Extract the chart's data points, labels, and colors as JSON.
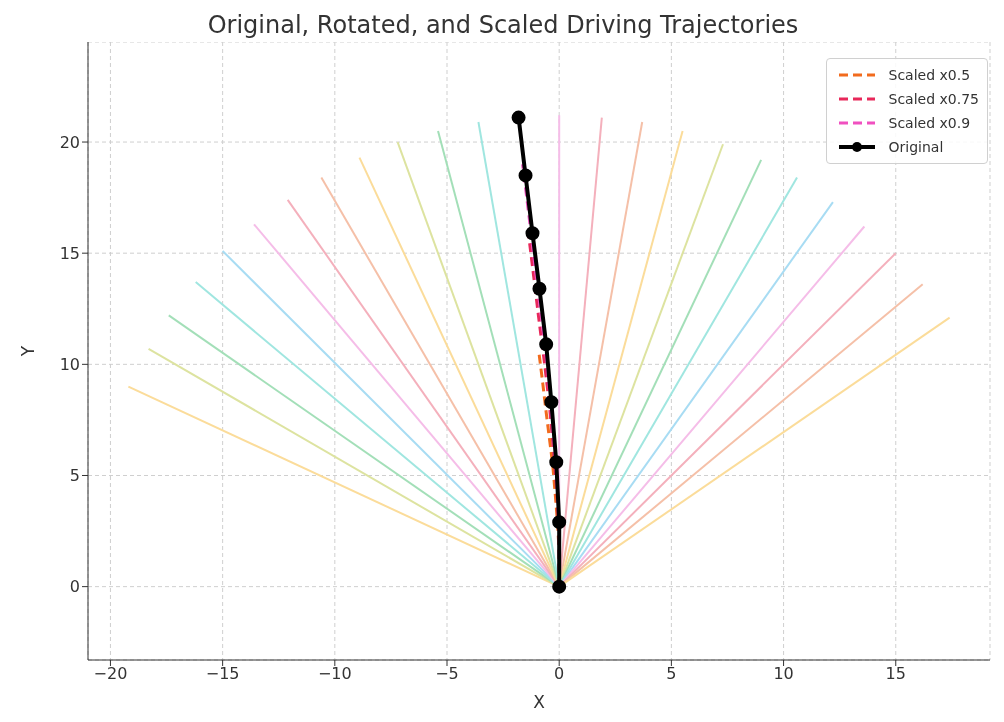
{
  "chart_data": {
    "type": "line",
    "title": "Original, Rotated, and Scaled Driving Trajectories",
    "xlabel": "X",
    "ylabel": "Y",
    "xlim": [
      -21,
      19.2
    ],
    "ylim": [
      -3.3,
      24.5
    ],
    "xticks": [
      -20,
      -15,
      -10,
      -5,
      0,
      5,
      10,
      15
    ],
    "yticks": [
      0,
      5,
      10,
      15,
      20
    ],
    "grid": true,
    "legend": "top right",
    "series": [
      {
        "color": "#fbdc9a",
        "x": [
          0,
          -19.2
        ],
        "values": [
          0,
          9.0
        ]
      },
      {
        "color": "#dde3a0",
        "x": [
          0,
          -18.3
        ],
        "values": [
          0,
          10.7
        ]
      },
      {
        "color": "#a3dfb8",
        "x": [
          0,
          -17.4
        ],
        "values": [
          0,
          12.2
        ]
      },
      {
        "color": "#a0e6e0",
        "x": [
          0,
          -16.2
        ],
        "values": [
          0,
          13.7
        ]
      },
      {
        "color": "#a8dcf3",
        "x": [
          0,
          -15.0
        ],
        "values": [
          0,
          15.1
        ]
      },
      {
        "color": "#f5bde8",
        "x": [
          0,
          -13.6
        ],
        "values": [
          0,
          16.3
        ]
      },
      {
        "color": "#f4b0bc",
        "x": [
          0,
          -12.1
        ],
        "values": [
          0,
          17.4
        ]
      },
      {
        "color": "#f5c0a8",
        "x": [
          0,
          -10.6
        ],
        "values": [
          0,
          18.4
        ]
      },
      {
        "color": "#fbdc9a",
        "x": [
          0,
          -8.9
        ],
        "values": [
          0,
          19.3
        ]
      },
      {
        "color": "#dde3a0",
        "x": [
          0,
          -7.2
        ],
        "values": [
          0,
          20.0
        ]
      },
      {
        "color": "#a3dfb8",
        "x": [
          0,
          -5.4
        ],
        "values": [
          0,
          20.5
        ]
      },
      {
        "color": "#a0e6e0",
        "x": [
          0,
          -3.6
        ],
        "values": [
          0,
          20.9
        ]
      },
      {
        "color": "#f5bde8",
        "x": [
          0,
          0.0
        ],
        "values": [
          0,
          21.2
        ]
      },
      {
        "color": "#f4b0bc",
        "x": [
          0,
          1.9
        ],
        "values": [
          0,
          21.1
        ]
      },
      {
        "color": "#f5c0a8",
        "x": [
          0,
          3.7
        ],
        "values": [
          0,
          20.9
        ]
      },
      {
        "color": "#fbdc9a",
        "x": [
          0,
          5.5
        ],
        "values": [
          0,
          20.5
        ]
      },
      {
        "color": "#dde3a0",
        "x": [
          0,
          7.3
        ],
        "values": [
          0,
          19.9
        ]
      },
      {
        "color": "#a3dfb8",
        "x": [
          0,
          9.0
        ],
        "values": [
          0,
          19.2
        ]
      },
      {
        "color": "#a0e6e0",
        "x": [
          0,
          10.6
        ],
        "values": [
          0,
          18.4
        ]
      },
      {
        "color": "#a8dcf3",
        "x": [
          0,
          12.2
        ],
        "values": [
          0,
          17.3
        ]
      },
      {
        "color": "#f5bde8",
        "x": [
          0,
          13.6
        ],
        "values": [
          0,
          16.2
        ]
      },
      {
        "color": "#f4b0bc",
        "x": [
          0,
          15.0
        ],
        "values": [
          0,
          15.0
        ]
      },
      {
        "color": "#f5c0a8",
        "x": [
          0,
          16.2
        ],
        "values": [
          0,
          13.6
        ]
      },
      {
        "color": "#fbdc9a",
        "x": [
          0,
          17.4
        ],
        "values": [
          0,
          12.1
        ]
      },
      {
        "name": "Scaled x0.5",
        "color": "#f26b1d",
        "line_style": "dashed",
        "x": [
          0,
          0,
          -0.07,
          -0.18,
          -0.29,
          -0.44,
          -0.6,
          -0.75,
          -0.9
        ],
        "values": [
          0,
          1.5,
          2.8,
          4.2,
          5.5,
          6.7,
          8.0,
          9.3,
          10.5
        ]
      },
      {
        "name": "Scaled x0.75",
        "color": "#e8285a",
        "line_style": "dashed",
        "x": [
          0,
          0,
          -0.1,
          -0.26,
          -0.44,
          -0.66,
          -0.89,
          -1.13,
          -1.36
        ],
        "values": [
          0,
          2.2,
          4.2,
          6.2,
          8.2,
          10.1,
          11.9,
          13.9,
          15.8
        ]
      },
      {
        "name": "Scaled x0.9",
        "color": "#f050c0",
        "line_style": "dashed",
        "x": [
          0,
          0,
          -0.12,
          -0.32,
          -0.52,
          -0.79,
          -1.07,
          -1.35,
          -1.63
        ],
        "values": [
          0,
          2.6,
          5.1,
          7.5,
          9.8,
          12.1,
          14.3,
          16.7,
          19.0
        ]
      },
      {
        "name": "Original",
        "color": "#000000",
        "marker": "circle",
        "x": [
          0,
          0,
          -0.13,
          -0.35,
          -0.58,
          -0.88,
          -1.19,
          -1.5,
          -1.81
        ],
        "values": [
          0,
          2.9,
          5.6,
          8.3,
          10.9,
          13.4,
          15.9,
          18.5,
          21.1
        ]
      }
    ]
  }
}
